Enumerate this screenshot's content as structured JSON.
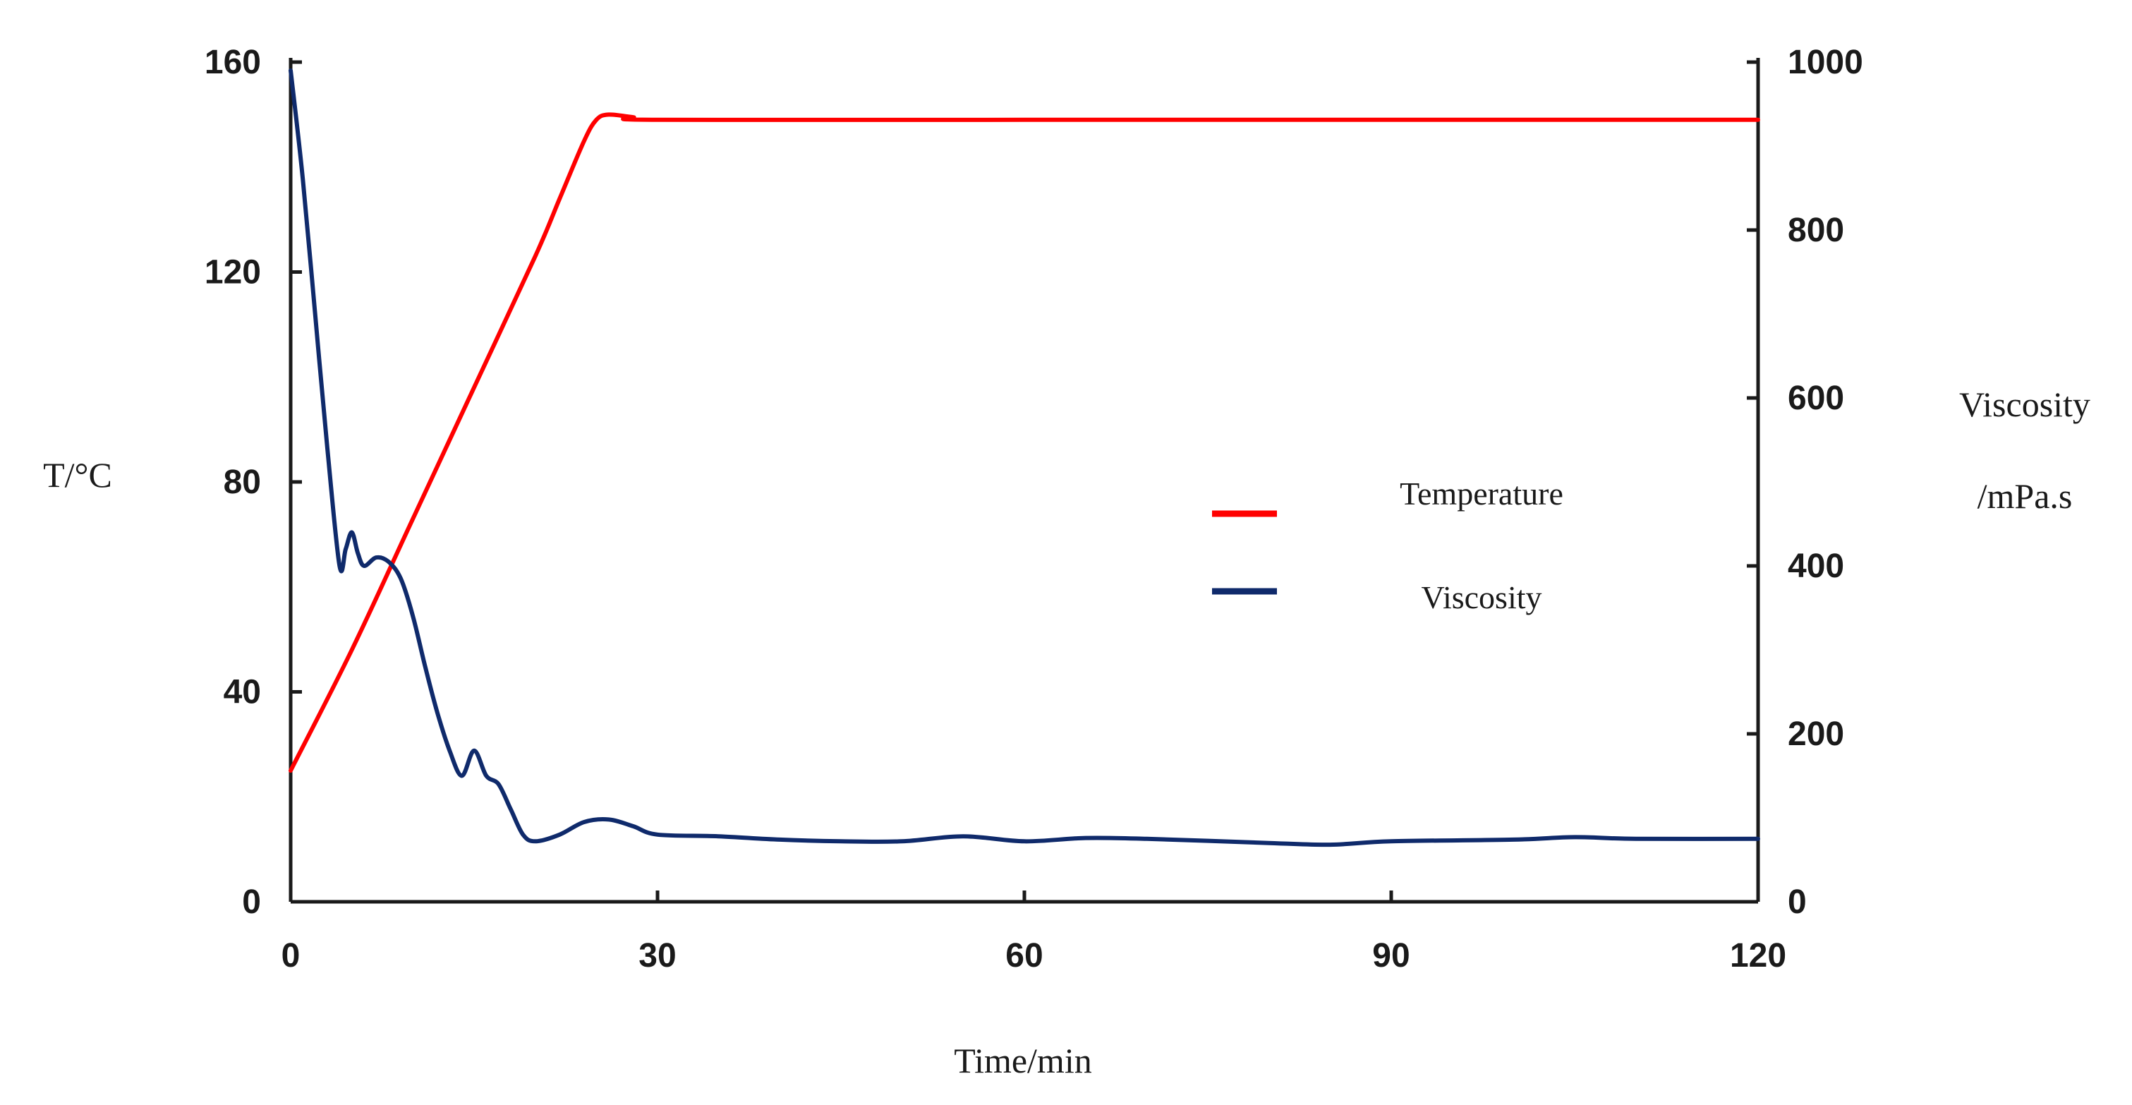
{
  "chart_data": {
    "type": "line",
    "xlabel": "Time/min",
    "ylabel_left": "T/°C",
    "ylabel_right_line1": "Viscosity",
    "ylabel_right_line2": "/mPa.s",
    "xlim": [
      0,
      120
    ],
    "ylim_left": [
      0,
      160
    ],
    "ylim_right": [
      0,
      1000
    ],
    "x_ticks": [
      0,
      30,
      60,
      90,
      120
    ],
    "y_left_ticks": [
      0,
      40,
      80,
      120,
      160
    ],
    "y_right_ticks": [
      0,
      200,
      400,
      600,
      800,
      1000
    ],
    "grid": false,
    "legend_position": "center-right",
    "series": [
      {
        "name": "Temperature",
        "axis": "left",
        "color": "#ff0000",
        "points": [
          [
            0,
            25
          ],
          [
            5,
            48
          ],
          [
            10,
            73
          ],
          [
            15,
            98
          ],
          [
            20,
            123
          ],
          [
            22,
            134
          ],
          [
            24,
            145
          ],
          [
            25,
            149
          ],
          [
            26,
            150
          ],
          [
            28,
            149.5
          ],
          [
            30,
            149
          ],
          [
            60,
            149
          ],
          [
            90,
            149
          ],
          [
            120,
            149
          ]
        ]
      },
      {
        "name": "Viscosity",
        "axis": "right",
        "color": "#0f2a6b",
        "points": [
          [
            0,
            990
          ],
          [
            1,
            860
          ],
          [
            2,
            700
          ],
          [
            3,
            540
          ],
          [
            4,
            400
          ],
          [
            4.5,
            420
          ],
          [
            5,
            440
          ],
          [
            5.5,
            415
          ],
          [
            6,
            400
          ],
          [
            7,
            410
          ],
          [
            8,
            405
          ],
          [
            9,
            385
          ],
          [
            10,
            340
          ],
          [
            11,
            280
          ],
          [
            12,
            225
          ],
          [
            13,
            180
          ],
          [
            14,
            150
          ],
          [
            15,
            180
          ],
          [
            16,
            150
          ],
          [
            17,
            140
          ],
          [
            18,
            110
          ],
          [
            19,
            80
          ],
          [
            20,
            72
          ],
          [
            22,
            80
          ],
          [
            24,
            95
          ],
          [
            26,
            98
          ],
          [
            28,
            90
          ],
          [
            30,
            80
          ],
          [
            35,
            78
          ],
          [
            40,
            74
          ],
          [
            45,
            72
          ],
          [
            50,
            72
          ],
          [
            55,
            78
          ],
          [
            60,
            72
          ],
          [
            65,
            76
          ],
          [
            70,
            75
          ],
          [
            80,
            70
          ],
          [
            85,
            68
          ],
          [
            90,
            72
          ],
          [
            100,
            74
          ],
          [
            105,
            77
          ],
          [
            110,
            75
          ],
          [
            120,
            75
          ]
        ]
      }
    ]
  }
}
